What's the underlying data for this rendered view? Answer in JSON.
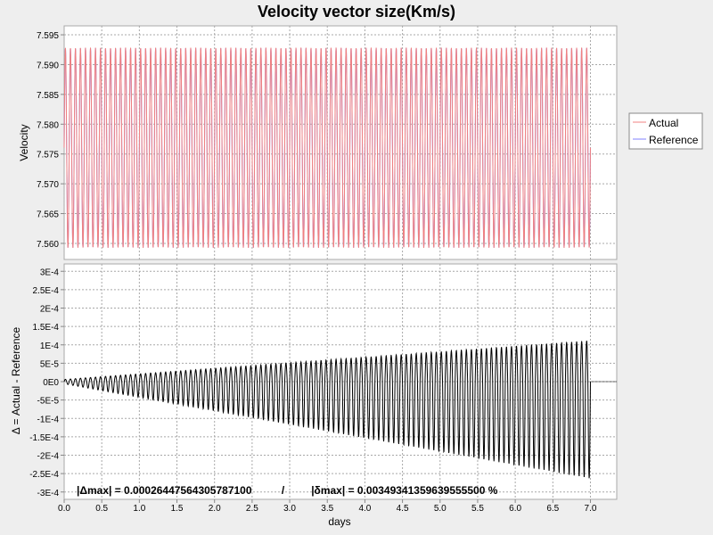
{
  "chart_data": [
    {
      "type": "line",
      "title": "Velocity vector size(Km/s)",
      "xlabel": "days",
      "ylabel": "Velocity",
      "xlim": [
        0,
        7.35
      ],
      "ylim": [
        7.5573,
        7.5965
      ],
      "x_ticks": [
        "0.0",
        "0.5",
        "1.0",
        "1.5",
        "2.0",
        "2.5",
        "3.0",
        "3.5",
        "4.0",
        "4.5",
        "5.0",
        "5.5",
        "6.0",
        "6.5",
        "7.0"
      ],
      "y_ticks": [
        "7.595",
        "7.590",
        "7.585",
        "7.580",
        "7.575",
        "7.570",
        "7.565",
        "7.560"
      ],
      "grid": true,
      "legend_position": "right",
      "oscillation": {
        "x_start": 0.0,
        "x_end": 7.0,
        "cycles": 105,
        "min": 7.5593,
        "max": 7.5928
      },
      "series": [
        {
          "name": "Actual",
          "color": "#f08080"
        },
        {
          "name": "Reference",
          "color": "#8080ff"
        }
      ]
    },
    {
      "type": "line",
      "xlabel": "days",
      "ylabel": "Δ = Actual - Reference",
      "xlim": [
        0,
        7.35
      ],
      "ylim": [
        -0.00032,
        0.00032
      ],
      "x_ticks": [
        "0.0",
        "0.5",
        "1.0",
        "1.5",
        "2.0",
        "2.5",
        "3.0",
        "3.5",
        "4.0",
        "4.5",
        "5.0",
        "5.5",
        "6.0",
        "6.5",
        "7.0"
      ],
      "y_ticks": [
        "3E-4",
        "2.5E-4",
        "2E-4",
        "1.5E-4",
        "1E-4",
        "5E-5",
        "0E0",
        "-5E-5",
        "-1E-4",
        "-1.5E-4",
        "-2E-4",
        "-2.5E-4",
        "-3E-4"
      ],
      "grid": true,
      "oscillation": {
        "x_start": 0.0,
        "x_end": 7.0,
        "cycles": 105,
        "upper_end": 0.000112,
        "lower_end": -0.000264
      },
      "series": [
        {
          "color": "#000000"
        }
      ],
      "annotation": "|Δmax| = 0.00026447564305787100          /         |δmax| = 0.00349341359639555500 %"
    }
  ]
}
